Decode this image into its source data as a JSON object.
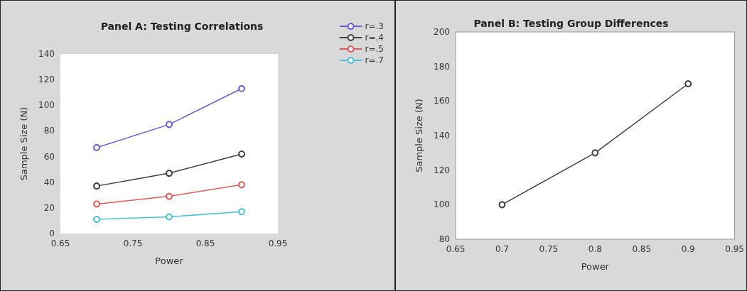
{
  "chart_data": [
    {
      "type": "line",
      "title": "Panel A: Testing Correlations",
      "xlabel": "Power",
      "ylabel": "Sample Size (N)",
      "x": [
        0.7,
        0.8,
        0.9
      ],
      "series": [
        {
          "name": "r=.3",
          "color": "#6a5fd0",
          "values": [
            67,
            85,
            113
          ]
        },
        {
          "name": "r=.4",
          "color": "#404040",
          "values": [
            37,
            47,
            62
          ]
        },
        {
          "name": "r=.5",
          "color": "#e05a5a",
          "values": [
            23,
            29,
            38
          ]
        },
        {
          "name": "r=.7",
          "color": "#4fbfd8",
          "values": [
            11,
            13,
            17
          ]
        }
      ],
      "xlim": [
        0.65,
        0.95
      ],
      "xticks": [
        0.65,
        0.75,
        0.85,
        0.95
      ],
      "ylim": [
        0,
        140
      ],
      "yticks": [
        0,
        20,
        40,
        60,
        80,
        100,
        120,
        140
      ],
      "grid": false,
      "legend": "top right",
      "marker": "circle",
      "line_style": "solid"
    },
    {
      "type": "line",
      "title": "Panel B: Testing Group Differences",
      "xlabel": "Power",
      "ylabel": "Sample Size (N)",
      "x": [
        0.7,
        0.8,
        0.9
      ],
      "series": [
        {
          "color": "#404040",
          "values": [
            100,
            130,
            170
          ]
        }
      ],
      "xlim": [
        0.65,
        0.95
      ],
      "xticks": [
        0.65,
        0.7,
        0.75,
        0.8,
        0.85,
        0.9,
        0.95
      ],
      "ylim": [
        80,
        200
      ],
      "yticks": [
        80,
        100,
        120,
        140,
        160,
        180,
        200
      ],
      "grid": false,
      "legend": false,
      "marker": "circle",
      "line_style": "solid"
    }
  ]
}
